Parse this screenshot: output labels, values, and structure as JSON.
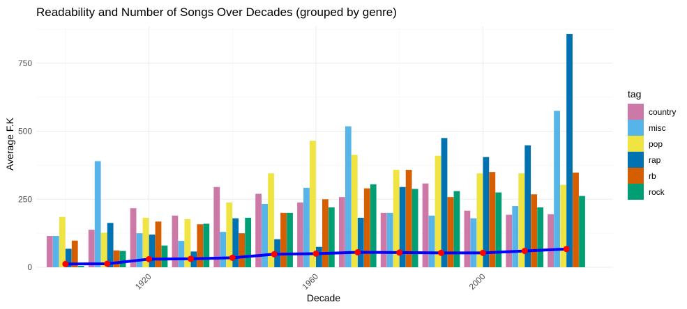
{
  "chart_data": {
    "type": "bar",
    "title": "Readability and Number of Songs Over Decades (grouped by genre)",
    "xlabel": "Decade",
    "ylabel": "Average F.K",
    "decades": [
      1900,
      1910,
      1920,
      1930,
      1940,
      1950,
      1960,
      1970,
      1980,
      1990,
      2000,
      2010,
      2020
    ],
    "x_ticks": [
      1920,
      1960,
      2000
    ],
    "x_tick_labels": [
      "1920",
      "1960",
      "2000"
    ],
    "y_ticks": [
      0,
      250,
      500,
      750
    ],
    "y_tick_labels": [
      "0",
      "250",
      "500",
      "750"
    ],
    "xlim": [
      1893,
      2031
    ],
    "ylim": [
      -5,
      885
    ],
    "legend": {
      "title": "tag",
      "position": "right"
    },
    "grid": true,
    "series": [
      {
        "name": "country",
        "color": "#CC79A7",
        "values": [
          115,
          138,
          217,
          190,
          295,
          270,
          238,
          258,
          200,
          308,
          208,
          193,
          195
        ]
      },
      {
        "name": "misc",
        "color": "#56B4E9",
        "values": [
          115,
          390,
          125,
          97,
          130,
          233,
          292,
          518,
          200,
          190,
          180,
          225,
          575
        ]
      },
      {
        "name": "pop",
        "color": "#F0E442",
        "values": [
          185,
          127,
          182,
          177,
          238,
          345,
          465,
          413,
          358,
          410,
          345,
          345,
          303
        ]
      },
      {
        "name": "rap",
        "color": "#0072B2",
        "values": [
          68,
          163,
          120,
          58,
          180,
          103,
          75,
          182,
          295,
          475,
          405,
          448,
          857
        ]
      },
      {
        "name": "rb",
        "color": "#D55E00",
        "values": [
          98,
          62,
          168,
          158,
          125,
          200,
          250,
          290,
          358,
          258,
          350,
          268,
          348
        ]
      },
      {
        "name": "rock",
        "color": "#009E73",
        "values": [
          5,
          60,
          80,
          160,
          182,
          200,
          220,
          305,
          288,
          280,
          275,
          220,
          262
        ]
      }
    ],
    "line": {
      "color": "#0000FF",
      "point_color": "#FF0000",
      "x": [
        1900,
        1910,
        1920,
        1930,
        1940,
        1950,
        1960,
        1970,
        1980,
        1990,
        2000,
        2010,
        2020
      ],
      "values": [
        12,
        13,
        30,
        31,
        35,
        48,
        50,
        55,
        54,
        53,
        53,
        60,
        67
      ]
    }
  }
}
